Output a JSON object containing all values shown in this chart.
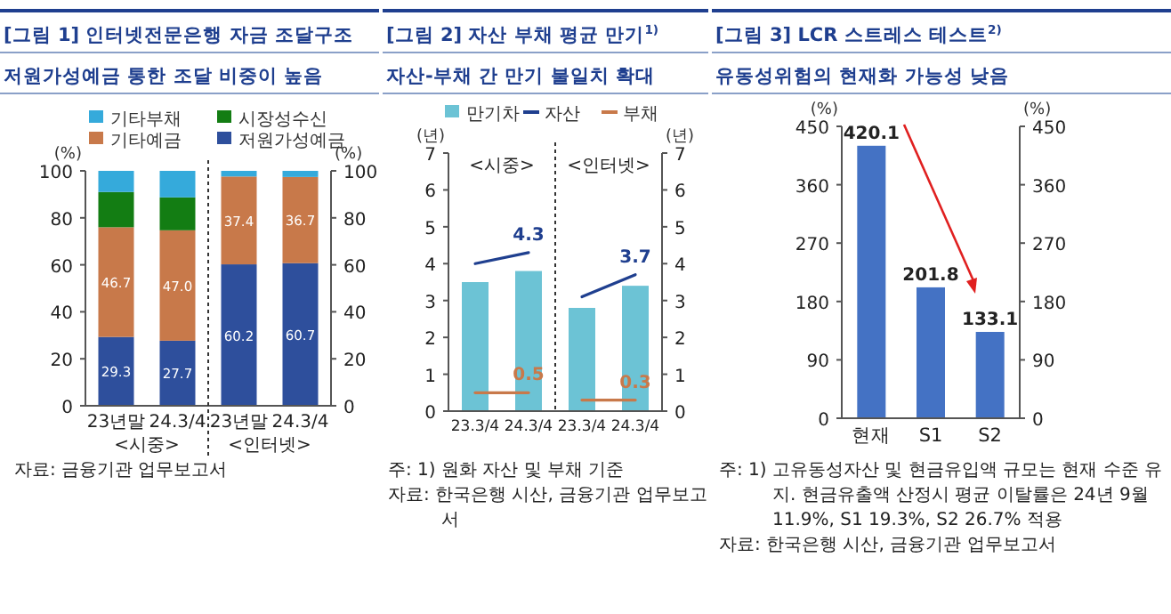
{
  "chart_data": [
    {
      "type": "bar",
      "title": "[그림 1] 인터넷전문은행 자금 조달구조",
      "subtitle": "저원가성예금 통한 조달 비중이 높음",
      "categories": [
        "23년말",
        "24.3/4",
        "23년말",
        "24.3/4"
      ],
      "stacked": true,
      "legend": "top",
      "ylabel": "(%)",
      "y2label": "(%)",
      "ylim": [
        0,
        100
      ],
      "yticks": [
        0,
        20,
        40,
        60,
        80,
        100
      ],
      "y2lim": [
        0,
        100
      ],
      "y2ticks": [
        0,
        20,
        40,
        60,
        80,
        100
      ],
      "series": [
        {
          "name": "저원가성예금",
          "color": "#2e4f9c",
          "values": [
            29.3,
            27.7,
            60.2,
            60.7
          ],
          "value_labels": [
            "29.3",
            "27.7",
            "60.2",
            "60.7"
          ]
        },
        {
          "name": "기타예금",
          "color": "#c8794a",
          "values": [
            46.7,
            47.0,
            37.4,
            36.7
          ],
          "value_labels": [
            "46.7",
            "47.0",
            "37.4",
            "36.7"
          ]
        },
        {
          "name": "시장성수신",
          "color": "#137d13",
          "values": [
            15,
            14,
            0,
            0
          ]
        },
        {
          "name": "기타부채",
          "color": "#35aadb",
          "values": [
            9,
            11.3,
            2.4,
            2.6
          ]
        }
      ],
      "annotations": [
        "<시중>",
        "<인터넷>",
        "자료: 금융기관 업무보고서"
      ]
    },
    {
      "type": "bar",
      "title": "[그림 2] 자산 부채 평균 만기$^{1)}$",
      "subtitle": "자산-부채 간 만기 불일치 확대",
      "categories": [
        "23.3/4",
        "24.3/4",
        "23.3/4",
        "24.3/4"
      ],
      "legend": "top",
      "ylabel": "(년)",
      "y2label": "(년)",
      "ylim": [
        0,
        7
      ],
      "yticks": [
        0,
        1,
        2,
        3,
        4,
        5,
        6,
        7
      ],
      "y2lim": [
        0,
        7
      ],
      "y2ticks": [
        0,
        1,
        2,
        3,
        4,
        5,
        6,
        7
      ],
      "series": [
        {
          "name": "만기차",
          "color": "#6cc3d5",
          "values": [
            3.5,
            3.8,
            2.8,
            3.4
          ]
        },
        {
          "name": "자산",
          "type": "line",
          "color": "#1f3f8f",
          "values": [
            4.0,
            4.3,
            null,
            null
          ],
          "value_labels": [
            null,
            "4.3",
            null,
            null
          ]
        },
        {
          "type": "line",
          "color": "#1f3f8f",
          "values": [
            null,
            null,
            3.1,
            3.7
          ],
          "value_labels": [
            null,
            null,
            null,
            "3.7"
          ]
        },
        {
          "name": "부채",
          "type": "line",
          "color": "#c8794a",
          "values": [
            0.5,
            0.5,
            null,
            null
          ],
          "value_labels": [
            null,
            "0.5",
            null,
            null
          ]
        },
        {
          "type": "line",
          "color": "#c8794a",
          "values": [
            null,
            null,
            0.3,
            0.3
          ],
          "value_labels": [
            null,
            null,
            null,
            "0.3"
          ]
        }
      ],
      "annotations": [
        "<시중>",
        "<인터넷>",
        "주: 1) 원화 자산 및 부채 기준",
        "자료: 한국은행 시산, 금융기관 업무보고서"
      ]
    },
    {
      "type": "bar",
      "title": "[그림 3] LCR 스트레스 테스트$^{2)}$",
      "subtitle": "유동성위험의 현재화 가능성 낮음",
      "categories": [
        "현재",
        "S1",
        "S2"
      ],
      "values": [
        420.1,
        201.8,
        133.1
      ],
      "color": "#4472c4",
      "data_labels": true,
      "ylabel": "(%)",
      "y2label": "(%)",
      "ylim": [
        0,
        450
      ],
      "yticks": [
        0,
        90,
        180,
        270,
        360,
        450
      ],
      "y2lim": [
        0,
        450
      ],
      "y2ticks": [
        0,
        90,
        180,
        270,
        360,
        450
      ],
      "annotations": [
        "주: 1) 고유동성자산 및 현금유입액 규모는 현재 수준 유지. 현금유출액 산정시 평균 이탈률은 24년 9월 11.9%, S1 19.3%, S2 26.7% 적용",
        "자료: 한국은행 시산, 금융기관 업무보고서"
      ]
    }
  ]
}
